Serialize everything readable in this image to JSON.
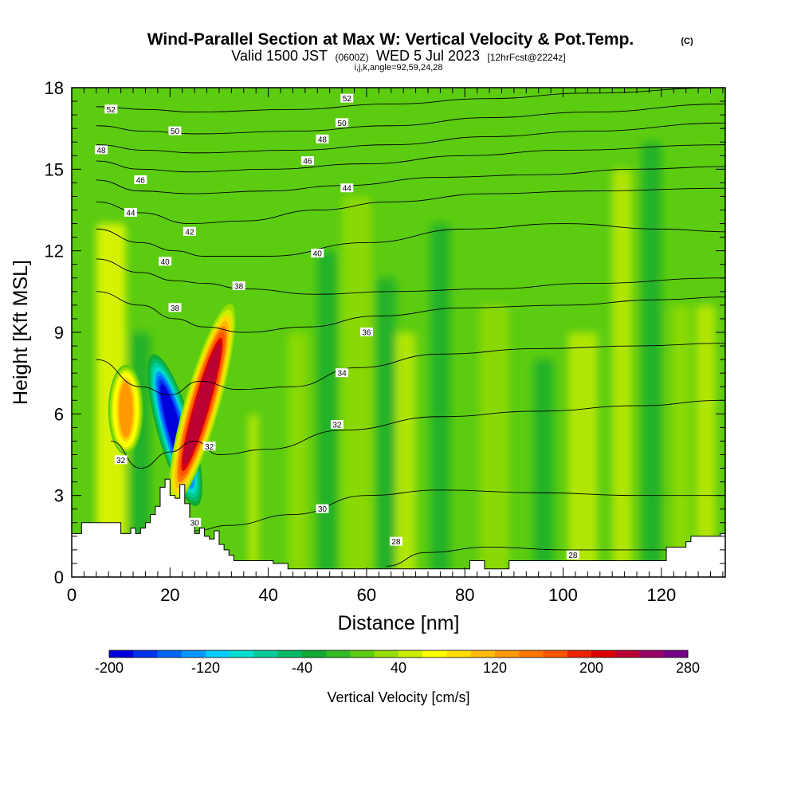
{
  "chart_data": {
    "type": "heatmap",
    "title": "Wind-Parallel Section at Max W: Vertical Velocity & Pot.Temp.",
    "title_mark": "(C)",
    "subtitle": {
      "valid": "Valid 1500 JST",
      "utc": "(0600Z)",
      "date": "WED 5 Jul 2023",
      "forecast": "[12hrFcst@2224z]"
    },
    "indices": "i,j,k,angle=92,59,24,28",
    "xlabel": "Distance [nm]",
    "ylabel": "Height [Kft MSL]",
    "xlim": [
      0,
      133
    ],
    "ylim": [
      0,
      18
    ],
    "x_ticks": [
      0,
      20,
      40,
      60,
      80,
      100,
      120
    ],
    "y_ticks": [
      0,
      3,
      6,
      9,
      12,
      15,
      18
    ],
    "colorbar": {
      "label": "Vertical Velocity [cm/s]",
      "tick_labels": [
        -200,
        -120,
        -40,
        40,
        120,
        200,
        280
      ],
      "levels": [
        -200,
        -180,
        -160,
        -140,
        -120,
        -100,
        -80,
        -60,
        -40,
        -20,
        0,
        20,
        40,
        60,
        80,
        100,
        120,
        140,
        160,
        180,
        200,
        220,
        240,
        260,
        280
      ],
      "colors": [
        "#0000dd",
        "#0033ee",
        "#0066ff",
        "#0099ff",
        "#00ccff",
        "#00ddcc",
        "#00cc99",
        "#00bb66",
        "#11aa33",
        "#33bb22",
        "#5ccc11",
        "#99dd00",
        "#ccee00",
        "#ffff00",
        "#ffdd00",
        "#ffbb00",
        "#ff9900",
        "#ff7700",
        "#ff5500",
        "#ee2200",
        "#dd0000",
        "#bb0033",
        "#990066",
        "#770088"
      ]
    },
    "features": [
      {
        "name": "downdraft",
        "x": 21,
        "y_bottom": 2.5,
        "y_top": 8.3,
        "min_w": -200
      },
      {
        "name": "updraft",
        "x": 26.5,
        "y_bottom": 2.5,
        "y_top": 10.2,
        "max_w": 230
      },
      {
        "name": "weak updraft",
        "x": 11,
        "y_bottom": 4.5,
        "y_top": 7.8,
        "max_w": 120
      }
    ],
    "terrain_profile": {
      "x": [
        0,
        1,
        2,
        9,
        10,
        12,
        13,
        14,
        15,
        16,
        17,
        18,
        19,
        20,
        21,
        22,
        23,
        24,
        25,
        26,
        27,
        28,
        29,
        30,
        31,
        32,
        33,
        40,
        41,
        44,
        80,
        81,
        84,
        88,
        89,
        100,
        101,
        120,
        121,
        125,
        126,
        132,
        133
      ],
      "height": [
        1.6,
        1.6,
        2.0,
        2.0,
        1.6,
        1.8,
        1.6,
        1.8,
        2.0,
        2.3,
        2.6,
        3.3,
        3.6,
        3.0,
        2.9,
        3.4,
        2.7,
        2.1,
        1.6,
        1.8,
        1.5,
        1.4,
        1.7,
        1.2,
        1.0,
        0.8,
        0.6,
        0.6,
        0.5,
        0.3,
        0.3,
        0.6,
        0.3,
        0.3,
        0.6,
        0.6,
        0.6,
        0.6,
        1.1,
        1.3,
        1.5,
        1.6,
        1.6
      ]
    },
    "isentropes": [
      {
        "theta": 28,
        "points": [
          [
            64,
            0.4
          ],
          [
            72,
            0.9
          ],
          [
            85,
            1.1
          ],
          [
            100,
            1.0
          ],
          [
            112,
            1.0
          ],
          [
            133,
            1.0
          ]
        ],
        "labels": [
          [
            66,
            1.3
          ],
          [
            102,
            0.8
          ]
        ]
      },
      {
        "theta": 30,
        "points": [
          [
            25,
            1.7
          ],
          [
            32,
            1.9
          ],
          [
            45,
            2.3
          ],
          [
            60,
            3.0
          ],
          [
            75,
            3.2
          ],
          [
            95,
            3.1
          ],
          [
            115,
            3.0
          ],
          [
            133,
            3.0
          ]
        ],
        "labels": [
          [
            25,
            2.0
          ],
          [
            51,
            2.5
          ]
        ]
      },
      {
        "theta": 32,
        "points": [
          [
            8,
            5.0
          ],
          [
            14,
            4.0
          ],
          [
            20,
            4.6
          ],
          [
            25,
            5.0
          ],
          [
            30,
            4.5
          ],
          [
            40,
            4.7
          ],
          [
            55,
            5.4
          ],
          [
            75,
            5.9
          ],
          [
            95,
            6.1
          ],
          [
            115,
            6.3
          ],
          [
            133,
            6.5
          ]
        ],
        "labels": [
          [
            10,
            4.3
          ],
          [
            28,
            4.8
          ],
          [
            54,
            5.6
          ]
        ]
      },
      {
        "theta": 34,
        "points": [
          [
            5,
            8.0
          ],
          [
            14,
            7.0
          ],
          [
            20,
            6.7
          ],
          [
            26,
            7.2
          ],
          [
            34,
            6.9
          ],
          [
            45,
            7.0
          ],
          [
            58,
            7.7
          ],
          [
            75,
            8.2
          ],
          [
            95,
            8.4
          ],
          [
            115,
            8.5
          ],
          [
            133,
            8.6
          ]
        ],
        "labels": [
          [
            55,
            7.5
          ]
        ]
      },
      {
        "theta": 36,
        "points": [
          [
            5,
            10.5
          ],
          [
            14,
            10.0
          ],
          [
            21,
            9.5
          ],
          [
            27,
            9.2
          ],
          [
            35,
            9.0
          ],
          [
            48,
            9.2
          ],
          [
            62,
            9.6
          ],
          [
            80,
            9.9
          ],
          [
            100,
            10.0
          ],
          [
            120,
            10.2
          ],
          [
            133,
            10.3
          ]
        ],
        "labels": [
          [
            60,
            9.0
          ]
        ]
      },
      {
        "theta": 38,
        "points": [
          [
            5,
            11.7
          ],
          [
            14,
            11.2
          ],
          [
            21,
            10.9
          ],
          [
            27,
            10.8
          ],
          [
            35,
            10.6
          ],
          [
            50,
            10.4
          ],
          [
            65,
            10.5
          ],
          [
            85,
            10.6
          ],
          [
            105,
            10.8
          ],
          [
            133,
            11.0
          ]
        ],
        "labels": [
          [
            21,
            9.9
          ],
          [
            34,
            10.7
          ]
        ]
      },
      {
        "theta": 40,
        "points": [
          [
            5,
            12.8
          ],
          [
            14,
            12.3
          ],
          [
            21,
            12.0
          ],
          [
            27,
            11.8
          ],
          [
            40,
            11.8
          ],
          [
            60,
            12.3
          ],
          [
            80,
            12.8
          ],
          [
            100,
            13.0
          ],
          [
            120,
            12.8
          ],
          [
            133,
            12.7
          ]
        ],
        "labels": [
          [
            19,
            11.6
          ],
          [
            50,
            11.9
          ]
        ]
      },
      {
        "theta": 42,
        "points": [
          [
            5,
            13.8
          ],
          [
            14,
            13.4
          ],
          [
            24,
            13.0
          ],
          [
            35,
            13.1
          ],
          [
            50,
            13.5
          ],
          [
            65,
            13.8
          ],
          [
            85,
            14.1
          ],
          [
            105,
            14.2
          ],
          [
            133,
            14.3
          ]
        ],
        "labels": [
          [
            24,
            12.7
          ]
        ]
      },
      {
        "theta": 44,
        "points": [
          [
            5,
            14.6
          ],
          [
            14,
            14.2
          ],
          [
            24,
            14.1
          ],
          [
            40,
            14.2
          ],
          [
            55,
            14.4
          ],
          [
            75,
            14.7
          ],
          [
            95,
            14.8
          ],
          [
            115,
            15.0
          ],
          [
            133,
            15.1
          ]
        ],
        "labels": [
          [
            12,
            13.4
          ],
          [
            56,
            14.3
          ]
        ]
      },
      {
        "theta": 46,
        "points": [
          [
            5,
            15.3
          ],
          [
            14,
            15.0
          ],
          [
            24,
            14.9
          ],
          [
            40,
            15.0
          ],
          [
            60,
            15.2
          ],
          [
            80,
            15.5
          ],
          [
            100,
            15.7
          ],
          [
            133,
            15.9
          ]
        ],
        "labels": [
          [
            14,
            14.6
          ],
          [
            48,
            15.3
          ]
        ]
      },
      {
        "theta": 48,
        "points": [
          [
            5,
            15.9
          ],
          [
            15,
            15.7
          ],
          [
            25,
            15.6
          ],
          [
            45,
            15.7
          ],
          [
            65,
            15.9
          ],
          [
            85,
            16.2
          ],
          [
            105,
            16.4
          ],
          [
            133,
            16.7
          ]
        ],
        "labels": [
          [
            6,
            15.7
          ],
          [
            51,
            16.1
          ]
        ]
      },
      {
        "theta": 50,
        "points": [
          [
            5,
            16.6
          ],
          [
            15,
            16.4
          ],
          [
            25,
            16.3
          ],
          [
            45,
            16.4
          ],
          [
            65,
            16.6
          ],
          [
            85,
            16.9
          ],
          [
            105,
            17.1
          ],
          [
            133,
            17.4
          ]
        ],
        "labels": [
          [
            21,
            16.4
          ],
          [
            55,
            16.7
          ]
        ]
      },
      {
        "theta": 52,
        "points": [
          [
            5,
            17.3
          ],
          [
            15,
            17.2
          ],
          [
            25,
            17.1
          ],
          [
            45,
            17.2
          ],
          [
            65,
            17.4
          ],
          [
            85,
            17.6
          ],
          [
            105,
            17.8
          ],
          [
            133,
            18.0
          ]
        ],
        "labels": [
          [
            8,
            17.2
          ],
          [
            56,
            17.6
          ]
        ]
      }
    ]
  }
}
